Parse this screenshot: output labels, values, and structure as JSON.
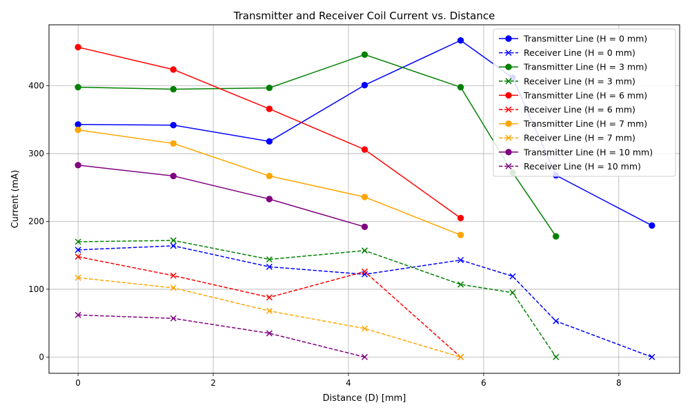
{
  "chart_data": {
    "type": "line",
    "title": "Transmitter and Receiver Coil Current vs. Distance",
    "xlabel": "Distance (D) [mm]",
    "ylabel": "Current (mA)",
    "xlim": [
      -0.43,
      8.9
    ],
    "ylim": [
      -24,
      490
    ],
    "xticks": [
      0,
      2,
      4,
      6,
      8
    ],
    "yticks": [
      0,
      100,
      200,
      300,
      400
    ],
    "grid": true,
    "legend_position": "top-right",
    "series": [
      {
        "name": "Transmitter Line (H = 0 mm)",
        "color": "#0000ff",
        "dash": false,
        "marker": "circle",
        "x": [
          0,
          1.41,
          2.83,
          4.24,
          5.66,
          6.43,
          7.07,
          8.49
        ],
        "y": [
          343,
          342,
          318,
          401,
          467,
          412,
          268,
          194
        ]
      },
      {
        "name": "Receiver Line (H = 0 mm)",
        "color": "#0000ff",
        "dash": true,
        "marker": "x",
        "x": [
          0,
          1.41,
          2.83,
          4.24,
          5.66,
          6.43,
          7.07,
          8.49
        ],
        "y": [
          158,
          164,
          133,
          122,
          143,
          119,
          53,
          0
        ]
      },
      {
        "name": "Transmitter Line (H = 3 mm)",
        "color": "#008000",
        "dash": false,
        "marker": "circle",
        "x": [
          0,
          1.41,
          2.83,
          4.24,
          5.66,
          6.43,
          7.07
        ],
        "y": [
          398,
          395,
          397,
          446,
          398,
          272,
          178
        ]
      },
      {
        "name": "Receiver Line (H = 3 mm)",
        "color": "#008000",
        "dash": true,
        "marker": "x",
        "x": [
          0,
          1.41,
          2.83,
          4.24,
          5.66,
          6.43,
          7.07
        ],
        "y": [
          170,
          172,
          144,
          157,
          107,
          95,
          0
        ]
      },
      {
        "name": "Transmitter Line (H = 6 mm)",
        "color": "#ff0000",
        "dash": false,
        "marker": "circle",
        "x": [
          0,
          1.41,
          2.83,
          4.24,
          5.66
        ],
        "y": [
          457,
          424,
          366,
          306,
          205
        ]
      },
      {
        "name": "Receiver Line (H = 6 mm)",
        "color": "#ff0000",
        "dash": true,
        "marker": "x",
        "x": [
          0,
          1.41,
          2.83,
          4.24,
          5.66
        ],
        "y": [
          148,
          120,
          88,
          126,
          0
        ]
      },
      {
        "name": "Transmitter Line (H = 7 mm)",
        "color": "#ffa500",
        "dash": false,
        "marker": "circle",
        "x": [
          0,
          1.41,
          2.83,
          4.24,
          5.66
        ],
        "y": [
          335,
          315,
          267,
          236,
          180
        ]
      },
      {
        "name": "Receiver Line (H = 7 mm)",
        "color": "#ffa500",
        "dash": true,
        "marker": "x",
        "x": [
          0,
          1.41,
          2.83,
          4.24,
          5.66
        ],
        "y": [
          117,
          102,
          68,
          42,
          0
        ]
      },
      {
        "name": "Transmitter Line (H = 10 mm)",
        "color": "#800080",
        "dash": false,
        "marker": "circle",
        "x": [
          0,
          1.41,
          2.83,
          4.24
        ],
        "y": [
          283,
          267,
          233,
          192
        ]
      },
      {
        "name": "Receiver Line (H = 10 mm)",
        "color": "#800080",
        "dash": true,
        "marker": "x",
        "x": [
          0,
          1.41,
          2.83,
          4.24
        ],
        "y": [
          62,
          57,
          35,
          0
        ]
      }
    ]
  }
}
